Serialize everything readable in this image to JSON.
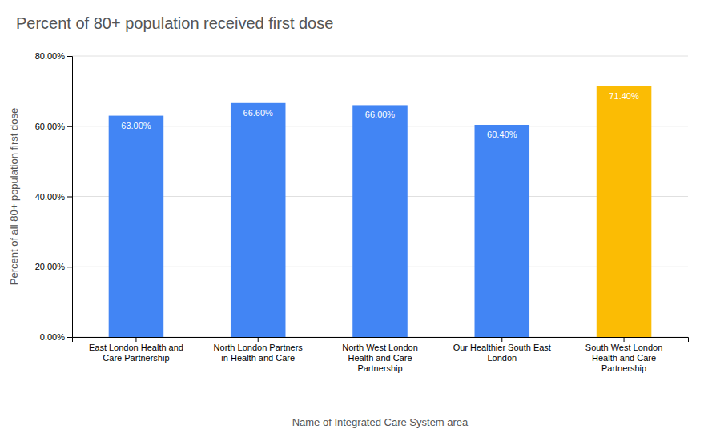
{
  "chart_data": {
    "type": "bar",
    "title": "Percent of 80+ population received first dose",
    "xlabel": "Name of Integrated Care System area",
    "ylabel": "Percent of all 80+ population first dose",
    "categories": [
      "East London Health and\nCare Partnership",
      "North London Partners\nin Health and Care",
      "North West London\nHealth and Care\nPartnership",
      "Our Healthier South East\nLondon",
      "South West London\nHealth and Care\nPartnership"
    ],
    "values": [
      63.0,
      66.6,
      66.0,
      60.4,
      71.4
    ],
    "value_labels": [
      "63.00%",
      "66.60%",
      "66.00%",
      "60.40%",
      "71.40%"
    ],
    "colors": [
      "#4285F4",
      "#4285F4",
      "#4285F4",
      "#4285F4",
      "#FBBC04"
    ],
    "ylim": [
      0,
      80
    ],
    "yticks": [
      {
        "value": 0,
        "label": "0.00%"
      },
      {
        "value": 20,
        "label": "20.00%"
      },
      {
        "value": 40,
        "label": "40.00%"
      },
      {
        "value": 60,
        "label": "60.00%"
      },
      {
        "value": 80,
        "label": "80.00%"
      }
    ],
    "grid": true,
    "data_labels": true
  }
}
